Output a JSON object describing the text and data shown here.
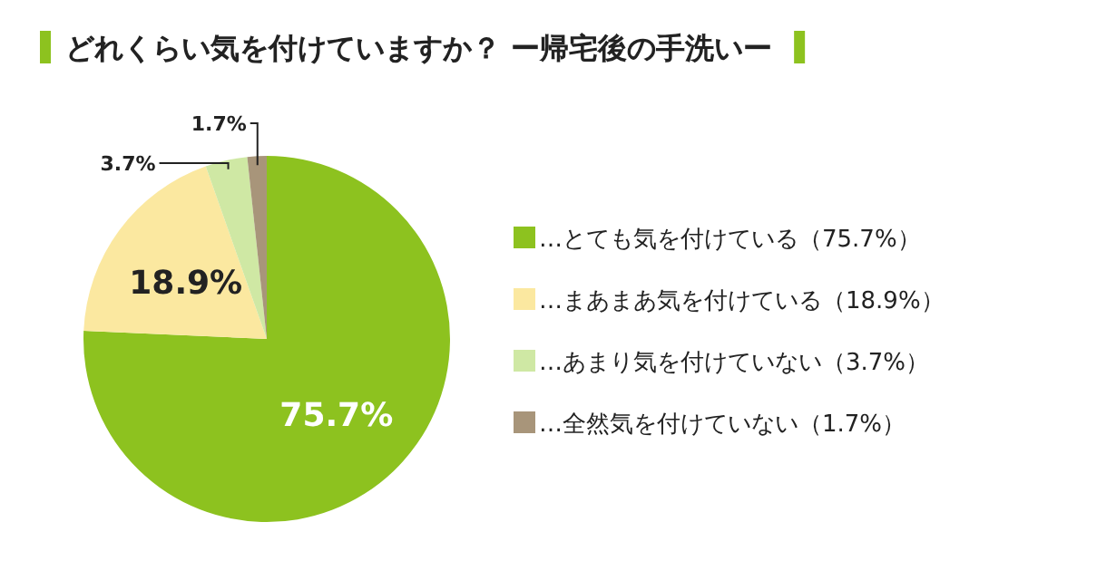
{
  "chart_data": {
    "type": "pie",
    "title": "どれくらい気を付けていますか？ ー帰宅後の手洗いー",
    "categories": [
      "…とても気を付けている（75.7%）",
      "…まあまあ気を付けている（18.9%）",
      "…あまり気を付けていない（3.7%）",
      "…全然気を付けていない（1.7%）"
    ],
    "values": [
      75.7,
      18.9,
      3.7,
      1.7
    ],
    "colors": [
      "#8dc21f",
      "#fbe8a0",
      "#cfe8a4",
      "#a8957a"
    ],
    "value_labels": [
      "75.7%",
      "18.9%",
      "3.7%",
      "1.7%"
    ],
    "legend": "right"
  }
}
